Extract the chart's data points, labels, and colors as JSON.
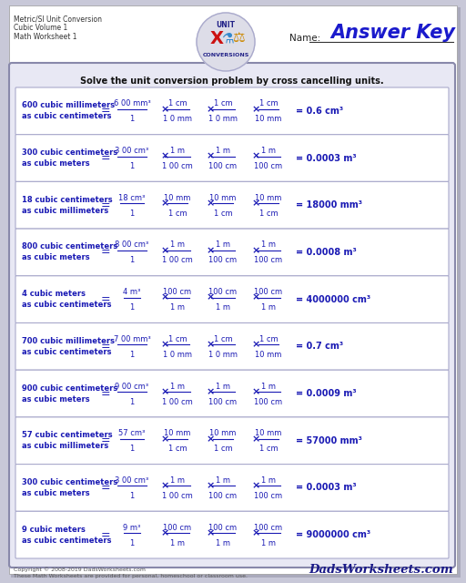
{
  "title_lines": [
    "Metric/SI Unit Conversion",
    "Cubic Volume 1",
    "Math Worksheet 1"
  ],
  "answer_key_text": "Answer Key",
  "name_label": "Name:",
  "instruction": "Solve the unit conversion problem by cross cancelling units.",
  "dark_blue": "#1a1ab4",
  "problems": [
    {
      "line1": "600 cubic millimeters",
      "line2": "as cubic centimeters",
      "numerators": [
        "6 00 mm³",
        "1 cm",
        "1 cm",
        "1 cm"
      ],
      "denominators": [
        "1",
        "1 0 mm",
        "1 0 mm",
        "10 mm"
      ],
      "result": "= 0.6 cm³"
    },
    {
      "line1": "300 cubic centimeters",
      "line2": "as cubic meters",
      "numerators": [
        "3 00 cm³",
        "1 m",
        "1 m",
        "1 m"
      ],
      "denominators": [
        "1",
        "1 00 cm",
        "100 cm",
        "100 cm"
      ],
      "result": "= 0.0003 m³"
    },
    {
      "line1": "18 cubic centimeters",
      "line2": "as cubic millimeters",
      "numerators": [
        "18 cm³",
        "10 mm",
        "10 mm",
        "10 mm"
      ],
      "denominators": [
        "1",
        "1 cm",
        "1 cm",
        "1 cm"
      ],
      "result": "= 18000 mm³"
    },
    {
      "line1": "800 cubic centimeters",
      "line2": "as cubic meters",
      "numerators": [
        "8 00 cm³",
        "1 m",
        "1 m",
        "1 m"
      ],
      "denominators": [
        "1",
        "1 00 cm",
        "100 cm",
        "100 cm"
      ],
      "result": "= 0.0008 m³"
    },
    {
      "line1": "4 cubic meters",
      "line2": "as cubic centimeters",
      "numerators": [
        "4 m³",
        "100 cm",
        "100 cm",
        "100 cm"
      ],
      "denominators": [
        "1",
        "1 m",
        "1 m",
        "1 m"
      ],
      "result": "= 4000000 cm³"
    },
    {
      "line1": "700 cubic millimeters",
      "line2": "as cubic centimeters",
      "numerators": [
        "7 00 mm³",
        "1 cm",
        "1 cm",
        "1 cm"
      ],
      "denominators": [
        "1",
        "1 0 mm",
        "1 0 mm",
        "10 mm"
      ],
      "result": "= 0.7 cm³"
    },
    {
      "line1": "900 cubic centimeters",
      "line2": "as cubic meters",
      "numerators": [
        "9 00 cm³",
        "1 m",
        "1 m",
        "1 m"
      ],
      "denominators": [
        "1",
        "1 00 cm",
        "100 cm",
        "100 cm"
      ],
      "result": "= 0.0009 m³"
    },
    {
      "line1": "57 cubic centimeters",
      "line2": "as cubic millimeters",
      "numerators": [
        "57 cm³",
        "10 mm",
        "10 mm",
        "10 mm"
      ],
      "denominators": [
        "1",
        "1 cm",
        "1 cm",
        "1 cm"
      ],
      "result": "= 57000 mm³"
    },
    {
      "line1": "300 cubic centimeters",
      "line2": "as cubic meters",
      "numerators": [
        "3 00 cm³",
        "1 m",
        "1 m",
        "1 m"
      ],
      "denominators": [
        "1",
        "1 00 cm",
        "100 cm",
        "100 cm"
      ],
      "result": "= 0.0003 m³"
    },
    {
      "line1": "9 cubic meters",
      "line2": "as cubic centimeters",
      "numerators": [
        "9 m³",
        "100 cm",
        "100 cm",
        "100 cm"
      ],
      "denominators": [
        "1",
        "1 m",
        "1 m",
        "1 m"
      ],
      "result": "= 9000000 cm³"
    }
  ],
  "footer_left1": "Copyright © 2008-2019 DadsWorksheets.com",
  "footer_left2": "These Math Worksheets are provided for personal, homeschool or classroom use.",
  "footer_right": "DadsWorksheets.com"
}
